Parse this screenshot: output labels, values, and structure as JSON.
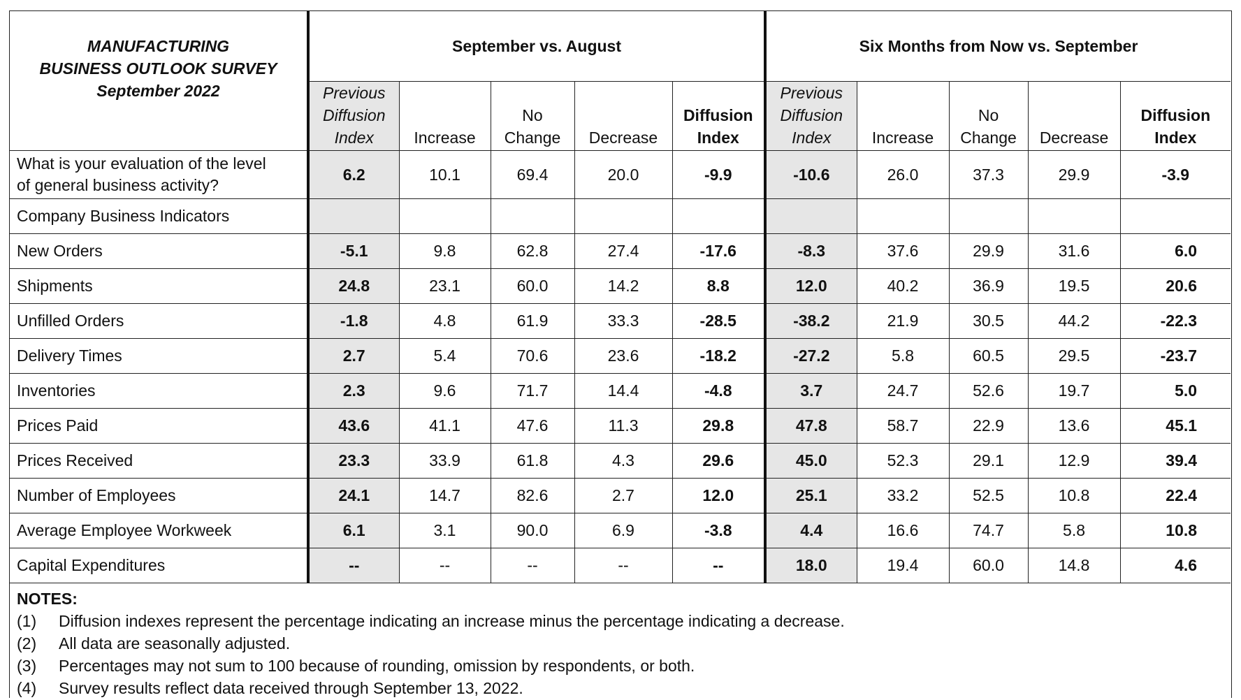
{
  "title": {
    "line1": "MANUFACTURING",
    "line2": "BUSINESS OUTLOOK SURVEY",
    "line3": "September 2022"
  },
  "groups": {
    "current": "September vs. August",
    "future": "Six Months from Now vs. September"
  },
  "headers": {
    "prev": [
      "Previous",
      "Diffusion",
      "Index"
    ],
    "increase": "Increase",
    "nochange": [
      "No",
      "Change"
    ],
    "decrease": "Decrease",
    "diffusion": [
      "Diffusion",
      "Index"
    ]
  },
  "general": {
    "label1": "What is your evaluation of the level",
    "label2": "of general business activity?",
    "values": [
      "6.2",
      "10.1",
      "69.4",
      "20.0",
      "-9.9",
      "-10.6",
      "26.0",
      "37.3",
      "29.9",
      "-3.9"
    ]
  },
  "section_label": "Company Business Indicators",
  "rows": [
    {
      "label": "New Orders",
      "values": [
        "-5.1",
        "9.8",
        "62.8",
        "27.4",
        "-17.6",
        "-8.3",
        "37.6",
        "29.9",
        "31.6",
        "6.0"
      ]
    },
    {
      "label": "Shipments",
      "values": [
        "24.8",
        "23.1",
        "60.0",
        "14.2",
        "8.8",
        "12.0",
        "40.2",
        "36.9",
        "19.5",
        "20.6"
      ]
    },
    {
      "label": "Unfilled Orders",
      "values": [
        "-1.8",
        "4.8",
        "61.9",
        "33.3",
        "-28.5",
        "-38.2",
        "21.9",
        "30.5",
        "44.2",
        "-22.3"
      ]
    },
    {
      "label": "Delivery Times",
      "values": [
        "2.7",
        "5.4",
        "70.6",
        "23.6",
        "-18.2",
        "-27.2",
        "5.8",
        "60.5",
        "29.5",
        "-23.7"
      ]
    },
    {
      "label": "Inventories",
      "values": [
        "2.3",
        "9.6",
        "71.7",
        "14.4",
        "-4.8",
        "3.7",
        "24.7",
        "52.6",
        "19.7",
        "5.0"
      ]
    },
    {
      "label": "Prices Paid",
      "values": [
        "43.6",
        "41.1",
        "47.6",
        "11.3",
        "29.8",
        "47.8",
        "58.7",
        "22.9",
        "13.6",
        "45.1"
      ]
    },
    {
      "label": "Prices Received",
      "values": [
        "23.3",
        "33.9",
        "61.8",
        "4.3",
        "29.6",
        "45.0",
        "52.3",
        "29.1",
        "12.9",
        "39.4"
      ]
    },
    {
      "label": "Number of Employees",
      "values": [
        "24.1",
        "14.7",
        "82.6",
        "2.7",
        "12.0",
        "25.1",
        "33.2",
        "52.5",
        "10.8",
        "22.4"
      ]
    },
    {
      "label": "Average Employee Workweek",
      "values": [
        "6.1",
        "3.1",
        "90.0",
        "6.9",
        "-3.8",
        "4.4",
        "16.6",
        "74.7",
        "5.8",
        "10.8"
      ]
    },
    {
      "label": "Capital Expenditures",
      "values": [
        "--",
        "--",
        "--",
        "--",
        "--",
        "18.0",
        "19.4",
        "60.0",
        "14.8",
        "4.6"
      ]
    }
  ],
  "notes": {
    "title": "NOTES:",
    "items": [
      {
        "num": "(1)",
        "text": "Diffusion indexes represent the percentage indicating an increase minus the percentage indicating a decrease."
      },
      {
        "num": "(2)",
        "text": "All data are seasonally adjusted."
      },
      {
        "num": "(3)",
        "text": "Percentages may not sum to 100 because of rounding, omission by respondents, or both."
      },
      {
        "num": "(4)",
        "text": "Survey results reflect data received through September 13, 2022."
      }
    ]
  }
}
